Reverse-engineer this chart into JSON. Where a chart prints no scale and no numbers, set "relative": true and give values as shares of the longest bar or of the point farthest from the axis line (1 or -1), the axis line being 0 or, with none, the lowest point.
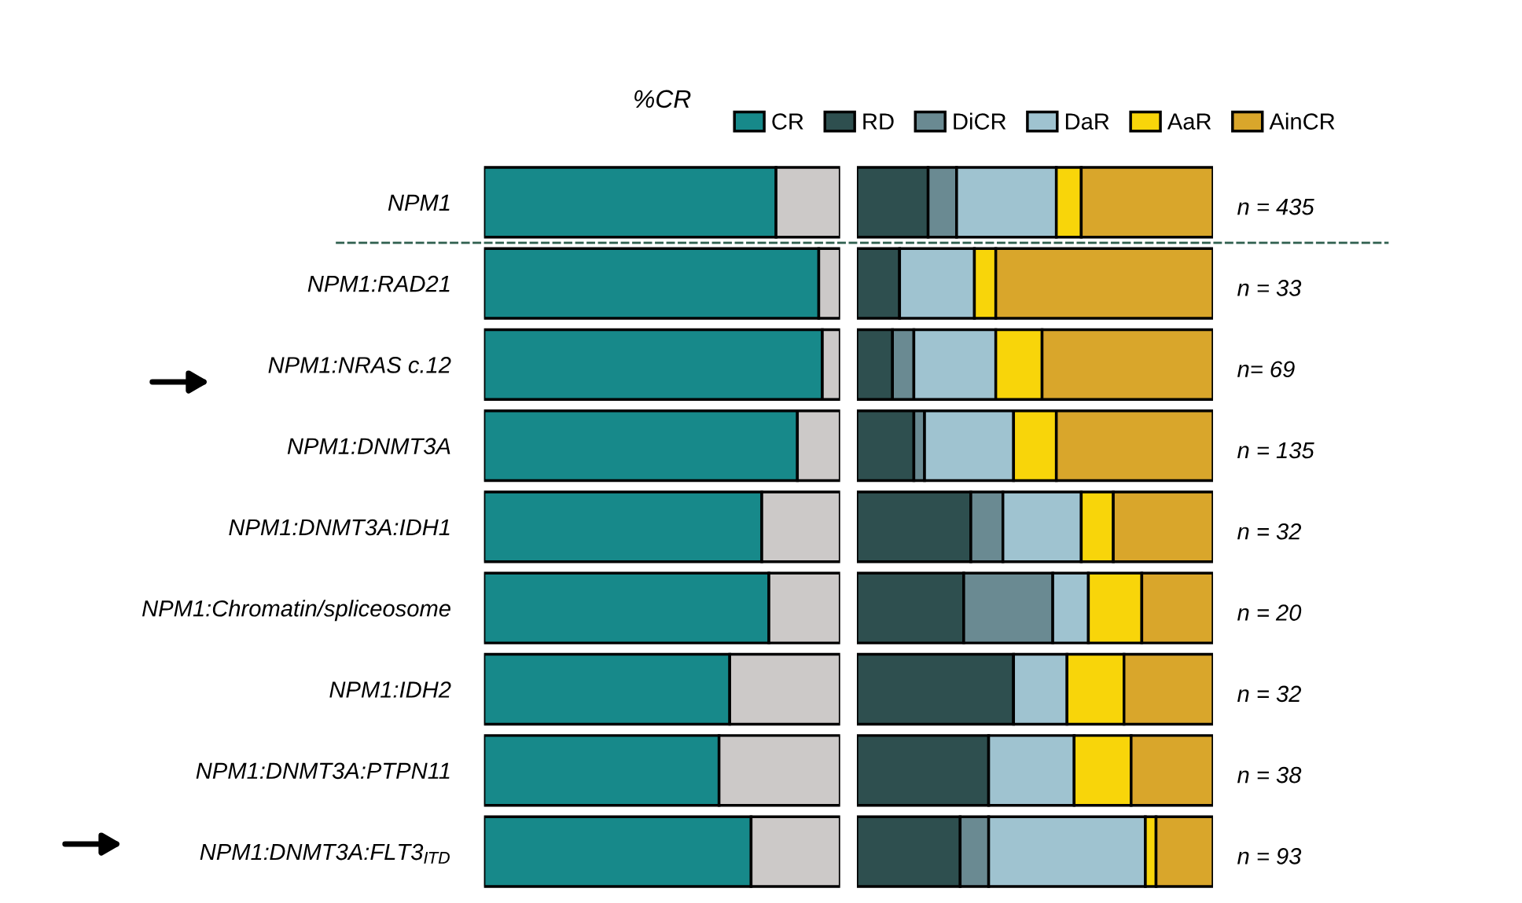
{
  "chart_data": [
    {
      "type": "bar",
      "orientation": "horizontal",
      "stacked": true,
      "relative": true,
      "title": "%CR",
      "tick_labels": "y",
      "categories": [
        "NPM1",
        "NPM1:RAD21",
        "NPM1:NRAS c.12",
        "NPM1:DNMT3A",
        "NPM1:DNMT3A:IDH1",
        "NPM1:Chromatin/spliceosome",
        "NPM1:IDH2",
        "NPM1:DNMT3A:PTPN11",
        "NPM1:DNMT3A:FLT3$_{ITD}$"
      ],
      "series": [
        {
          "name": "CR",
          "color": "#17898a",
          "values": [
            0.82,
            0.94,
            0.95,
            0.88,
            0.78,
            0.8,
            0.69,
            0.66,
            0.75
          ]
        },
        {
          "color": "#ccc9c8",
          "values": [
            0.18,
            0.06,
            0.05,
            0.12,
            0.22,
            0.2,
            0.31,
            0.34,
            0.25
          ]
        }
      ]
    },
    {
      "type": "bar",
      "orientation": "horizontal",
      "stacked": true,
      "relative": true,
      "legend": "top",
      "categories": [
        null,
        null,
        null,
        null,
        null,
        null,
        null,
        null,
        null
      ],
      "series": [
        {
          "name": "RD",
          "color": "#2e4f4f",
          "values": [
            0.2,
            0.12,
            0.1,
            0.16,
            0.32,
            0.3,
            0.44,
            0.37,
            0.29
          ]
        },
        {
          "name": "DiCR",
          "color": "#6a8a92",
          "values": [
            0.08,
            0,
            0.06,
            0.03,
            0.09,
            0.25,
            0,
            0,
            0.08
          ]
        },
        {
          "name": "DaR",
          "color": "#9fc3d0",
          "values": [
            0.28,
            0.21,
            0.23,
            0.25,
            0.22,
            0.1,
            0.15,
            0.24,
            0.44
          ]
        },
        {
          "name": "AaR",
          "color": "#f8d50a",
          "values": [
            0.07,
            0.06,
            0.13,
            0.12,
            0.09,
            0.15,
            0.16,
            0.16,
            0.03
          ]
        },
        {
          "name": "AinCR",
          "color": "#d9a62b",
          "values": [
            0.37,
            0.61,
            0.48,
            0.44,
            0.28,
            0.2,
            0.25,
            0.23,
            0.16
          ]
        }
      ],
      "annotations": [
        "n = 435",
        "n = 33",
        "n= 69",
        "n = 135",
        "n = 32",
        "n = 20",
        "n = 32",
        "n = 38",
        "n = 93"
      ]
    }
  ]
}
